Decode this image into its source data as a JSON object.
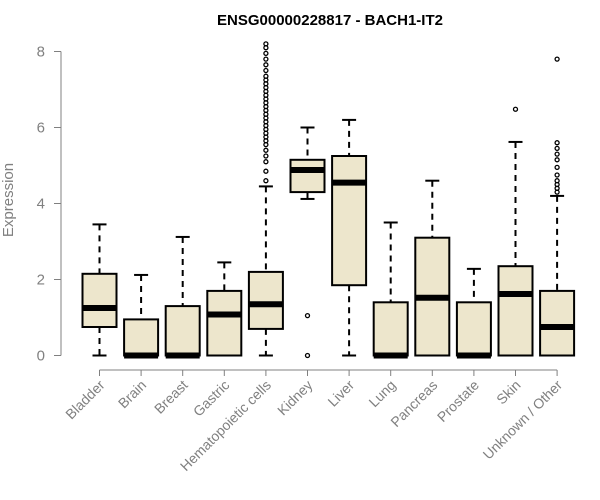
{
  "chart_data": {
    "type": "box",
    "title": "ENSG00000228817 - BACH1-IT2",
    "xlabel": "",
    "ylabel": "Expression",
    "ylim": [
      0,
      8
    ],
    "yticks": [
      0,
      2,
      4,
      6,
      8
    ],
    "grid": false,
    "box_fill": "#ede6cc",
    "box_stroke": "#000000",
    "categories": [
      "Bladder",
      "Brain",
      "Breast",
      "Gastric",
      "Hematopoietic cells",
      "Kidney",
      "Liver",
      "Lung",
      "Pancreas",
      "Prostate",
      "Skin",
      "Unknown / Other"
    ],
    "boxes": [
      {
        "category": "Bladder",
        "min": 0,
        "q1": 0.75,
        "median": 1.25,
        "q3": 2.15,
        "max": 3.45,
        "outliers": []
      },
      {
        "category": "Brain",
        "min": 0,
        "q1": 0,
        "median": 0,
        "q3": 0.95,
        "max": 2.12,
        "outliers": []
      },
      {
        "category": "Breast",
        "min": 0,
        "q1": 0,
        "median": 0,
        "q3": 1.3,
        "max": 3.12,
        "outliers": []
      },
      {
        "category": "Gastric",
        "min": 0,
        "q1": 0,
        "median": 1.08,
        "q3": 1.7,
        "max": 2.45,
        "outliers": []
      },
      {
        "category": "Hematopoietic cells",
        "min": 0,
        "q1": 0.7,
        "median": 1.35,
        "q3": 2.2,
        "max": 4.45,
        "outliers": [
          4.6,
          4.85,
          5.1,
          5.25,
          5.4,
          5.55,
          5.65,
          5.75,
          5.85,
          5.95,
          6.05,
          6.15,
          6.25,
          6.35,
          6.45,
          6.55,
          6.65,
          6.75,
          6.85,
          6.95,
          7.05,
          7.15,
          7.25,
          7.35,
          7.5,
          7.65,
          7.8,
          7.95,
          8.1,
          8.2
        ]
      },
      {
        "category": "Kidney",
        "min": 4.12,
        "q1": 4.3,
        "median": 4.88,
        "q3": 5.15,
        "max": 6.0,
        "outliers": [
          1.05,
          0
        ]
      },
      {
        "category": "Liver",
        "min": 0,
        "q1": 1.85,
        "median": 4.55,
        "q3": 5.25,
        "max": 6.2,
        "outliers": []
      },
      {
        "category": "Lung",
        "min": 0,
        "q1": 0,
        "median": 0,
        "q3": 1.4,
        "max": 3.5,
        "outliers": []
      },
      {
        "category": "Pancreas",
        "min": 0,
        "q1": 0,
        "median": 1.52,
        "q3": 3.1,
        "max": 4.6,
        "outliers": []
      },
      {
        "category": "Prostate",
        "min": 0,
        "q1": 0,
        "median": 0,
        "q3": 1.4,
        "max": 2.28,
        "outliers": []
      },
      {
        "category": "Skin",
        "min": 0,
        "q1": 0,
        "median": 1.62,
        "q3": 2.35,
        "max": 5.62,
        "outliers": [
          6.48
        ]
      },
      {
        "category": "Unknown / Other",
        "min": 0,
        "q1": 0,
        "median": 0.75,
        "q3": 1.7,
        "max": 4.2,
        "outliers": [
          4.3,
          4.4,
          4.5,
          4.6,
          4.75,
          4.95,
          5.15,
          5.3,
          5.45,
          5.6,
          7.8
        ]
      }
    ]
  }
}
